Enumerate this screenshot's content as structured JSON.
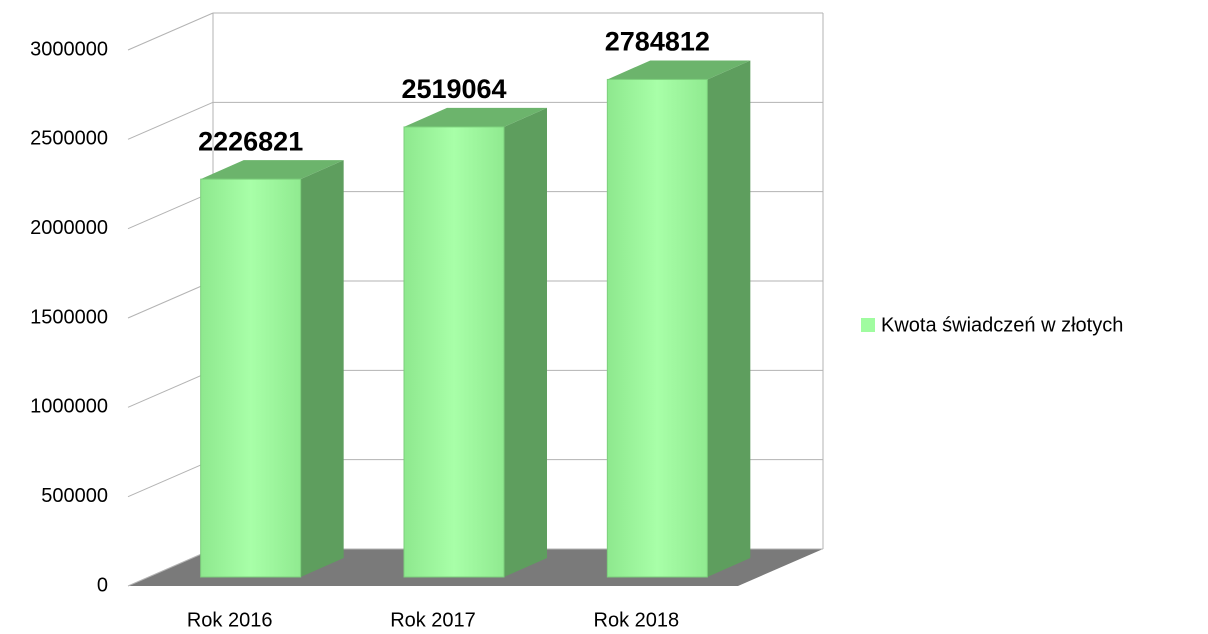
{
  "chart_data": {
    "type": "bar3d",
    "categories": [
      "Rok 2016",
      "Rok 2017",
      "Rok 2018"
    ],
    "series": [
      {
        "name": "Kwota świadczeń w złotych",
        "color": "#a0fca0",
        "values": [
          2226821,
          2519064,
          2784812
        ]
      }
    ],
    "ylim": [
      0,
      3000000
    ],
    "yticks": [
      0,
      500000,
      1000000,
      1500000,
      2000000,
      2500000,
      3000000
    ],
    "grid": true,
    "legend": "right"
  }
}
